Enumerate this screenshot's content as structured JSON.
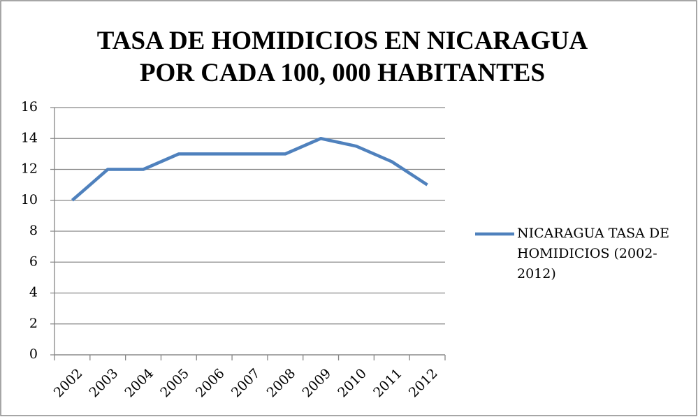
{
  "chart_data": {
    "type": "line",
    "title": "TASA DE HOMIDICIOS EN NICARAGUA POR CADA 100, 000 HABITANTES",
    "categories": [
      "2002",
      "2003",
      "2004",
      "2005",
      "2006",
      "2007",
      "2008",
      "2009",
      "2010",
      "2011",
      "2012"
    ],
    "series": [
      {
        "name": "NICARAGUA TASA DE HOMIDICIOS (2002-2012)",
        "color": "#4f81bd",
        "values": [
          10,
          12,
          12,
          13,
          13,
          13,
          13,
          14,
          13.5,
          12.5,
          11
        ]
      }
    ],
    "ylim": [
      0,
      16
    ],
    "yticks": [
      0,
      2,
      4,
      6,
      8,
      10,
      12,
      14,
      16
    ],
    "grid": true,
    "legend": "right"
  }
}
